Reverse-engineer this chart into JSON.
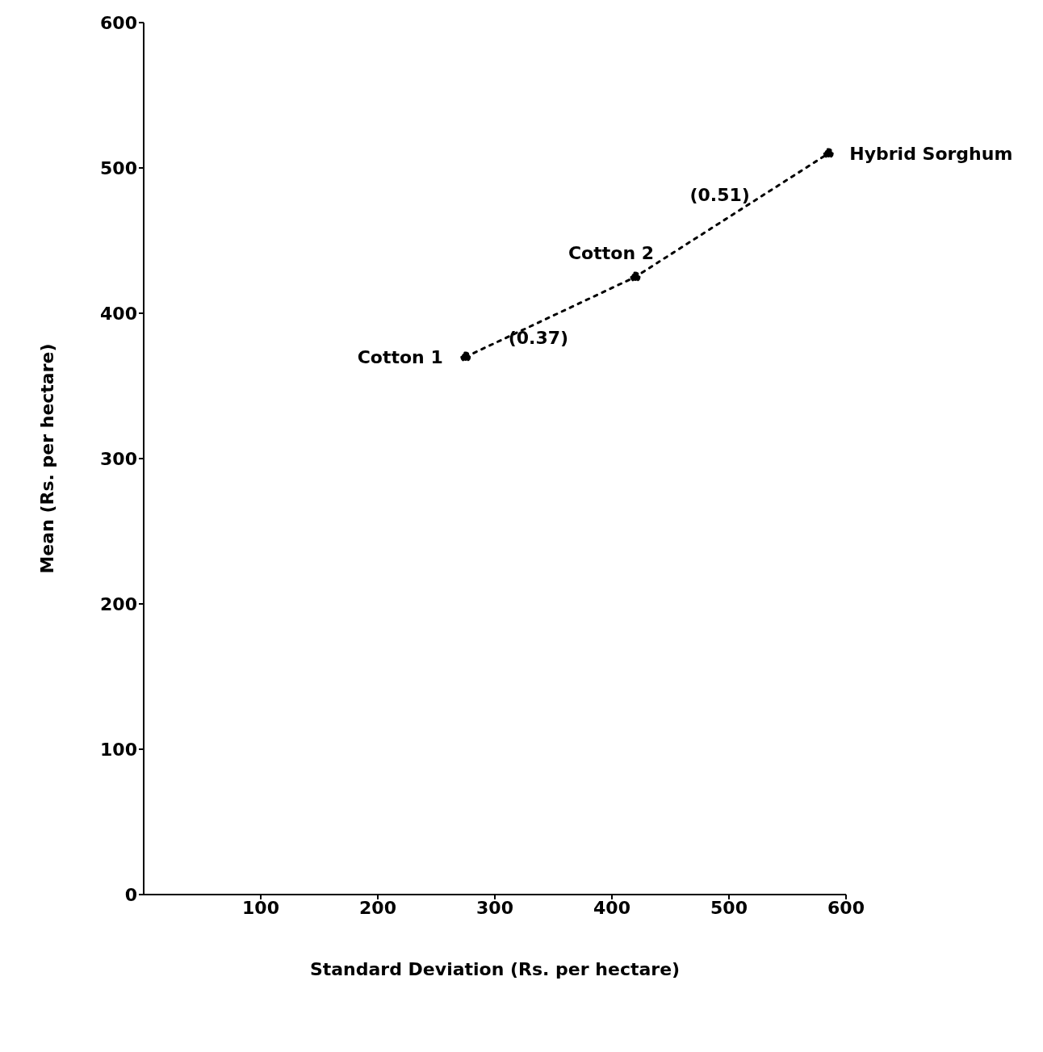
{
  "chart_data": {
    "type": "line",
    "xlabel": "Standard Deviation (Rs. per hectare)",
    "ylabel": "Mean (Rs. per hectare)",
    "xlim": [
      0,
      600
    ],
    "xticks": [
      100,
      200,
      300,
      400,
      500,
      600
    ],
    "ylim": [
      0,
      600
    ],
    "yticks": [
      0,
      100,
      200,
      300,
      400,
      500,
      600
    ],
    "x": [
      275,
      420,
      585
    ],
    "series": [
      {
        "color": "#000000",
        "values": [
          370,
          425,
          510
        ]
      }
    ],
    "marker": "circle",
    "line_style": "dotted",
    "grid": false,
    "legend": false,
    "annotations": [
      {
        "text": "Cotton 1",
        "x": 275,
        "y": 370
      },
      {
        "text": "Cotton 2",
        "x": 420,
        "y": 425
      },
      {
        "text": "Hybrid Sorghum",
        "x": 585,
        "y": 510
      },
      "(0.37)",
      "(0.51)"
    ]
  }
}
